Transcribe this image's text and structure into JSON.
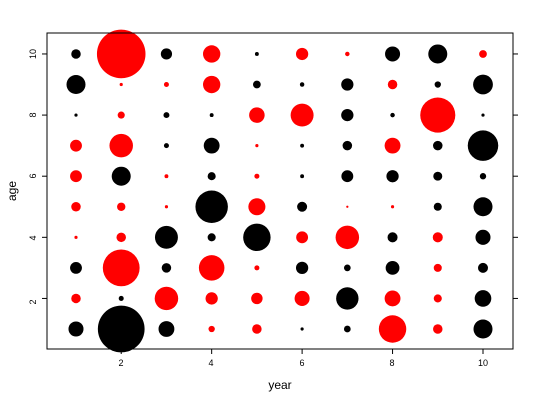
{
  "chart_data": {
    "type": "scatter",
    "title": "",
    "xlabel": "year",
    "ylabel": "age",
    "xlim": [
      0.4,
      10.6
    ],
    "ylim": [
      0.35,
      10.65
    ],
    "xticks": [
      2,
      4,
      6,
      8,
      10
    ],
    "yticks": [
      2,
      4,
      6,
      8,
      10
    ],
    "grid": false,
    "legend": "none",
    "colors": {
      "positive": "#ff0000",
      "negative": "#000000"
    },
    "size_encoding": "circle area proportional to absolute value; red = positive, black = negative",
    "points": [
      {
        "x": 1,
        "y": 1,
        "value": -0.45,
        "color": "#000000"
      },
      {
        "x": 1,
        "y": 2,
        "value": 0.18,
        "color": "#ff0000"
      },
      {
        "x": 1,
        "y": 3,
        "value": -0.28,
        "color": "#000000"
      },
      {
        "x": 1,
        "y": 4,
        "value": 0.02,
        "color": "#ff0000"
      },
      {
        "x": 1,
        "y": 5,
        "value": 0.18,
        "color": "#ff0000"
      },
      {
        "x": 1,
        "y": 6,
        "value": 0.28,
        "color": "#ff0000"
      },
      {
        "x": 1,
        "y": 7,
        "value": 0.28,
        "color": "#ff0000"
      },
      {
        "x": 1,
        "y": 8,
        "value": -0.02,
        "color": "#000000"
      },
      {
        "x": 1,
        "y": 9,
        "value": -0.72,
        "color": "#000000"
      },
      {
        "x": 1,
        "y": 10,
        "value": -0.18,
        "color": "#000000"
      },
      {
        "x": 2,
        "y": 1,
        "value": -4.35,
        "color": "#000000"
      },
      {
        "x": 2,
        "y": 2,
        "value": -0.05,
        "color": "#000000"
      },
      {
        "x": 2,
        "y": 3,
        "value": 2.7,
        "color": "#ff0000"
      },
      {
        "x": 2,
        "y": 4,
        "value": 0.18,
        "color": "#ff0000"
      },
      {
        "x": 2,
        "y": 5,
        "value": 0.14,
        "color": "#ff0000"
      },
      {
        "x": 2,
        "y": 6,
        "value": -0.72,
        "color": "#000000"
      },
      {
        "x": 2,
        "y": 7,
        "value": 1.1,
        "color": "#ff0000"
      },
      {
        "x": 2,
        "y": 8,
        "value": 0.1,
        "color": "#ff0000"
      },
      {
        "x": 2,
        "y": 9,
        "value": 0.02,
        "color": "#ff0000"
      },
      {
        "x": 2,
        "y": 10,
        "value": 4.7,
        "color": "#ff0000"
      },
      {
        "x": 3,
        "y": 1,
        "value": -0.5,
        "color": "#000000"
      },
      {
        "x": 3,
        "y": 2,
        "value": 1.1,
        "color": "#ff0000"
      },
      {
        "x": 3,
        "y": 3,
        "value": -0.18,
        "color": "#000000"
      },
      {
        "x": 3,
        "y": 4,
        "value": -1.05,
        "color": "#000000"
      },
      {
        "x": 3,
        "y": 5,
        "value": 0.02,
        "color": "#ff0000"
      },
      {
        "x": 3,
        "y": 6,
        "value": 0.03,
        "color": "#ff0000"
      },
      {
        "x": 3,
        "y": 7,
        "value": -0.05,
        "color": "#000000"
      },
      {
        "x": 3,
        "y": 8,
        "value": -0.07,
        "color": "#000000"
      },
      {
        "x": 3,
        "y": 9,
        "value": 0.05,
        "color": "#ff0000"
      },
      {
        "x": 3,
        "y": 10,
        "value": -0.25,
        "color": "#000000"
      },
      {
        "x": 4,
        "y": 1,
        "value": 0.08,
        "color": "#ff0000"
      },
      {
        "x": 4,
        "y": 2,
        "value": 0.3,
        "color": "#ff0000"
      },
      {
        "x": 4,
        "y": 3,
        "value": 1.3,
        "color": "#ff0000"
      },
      {
        "x": 4,
        "y": 4,
        "value": -0.13,
        "color": "#000000"
      },
      {
        "x": 4,
        "y": 5,
        "value": -2.1,
        "color": "#000000"
      },
      {
        "x": 4,
        "y": 6,
        "value": -0.13,
        "color": "#000000"
      },
      {
        "x": 4,
        "y": 7,
        "value": -0.5,
        "color": "#000000"
      },
      {
        "x": 4,
        "y": 8,
        "value": -0.03,
        "color": "#000000"
      },
      {
        "x": 4,
        "y": 9,
        "value": 0.6,
        "color": "#ff0000"
      },
      {
        "x": 4,
        "y": 10,
        "value": 0.6,
        "color": "#ff0000"
      },
      {
        "x": 5,
        "y": 1,
        "value": 0.18,
        "color": "#ff0000"
      },
      {
        "x": 5,
        "y": 2,
        "value": 0.26,
        "color": "#ff0000"
      },
      {
        "x": 5,
        "y": 3,
        "value": 0.05,
        "color": "#ff0000"
      },
      {
        "x": 5,
        "y": 4,
        "value": -1.5,
        "color": "#000000"
      },
      {
        "x": 5,
        "y": 5,
        "value": 0.58,
        "color": "#ff0000"
      },
      {
        "x": 5,
        "y": 6,
        "value": 0.05,
        "color": "#ff0000"
      },
      {
        "x": 5,
        "y": 7,
        "value": 0.02,
        "color": "#ff0000"
      },
      {
        "x": 5,
        "y": 8,
        "value": 0.48,
        "color": "#ff0000"
      },
      {
        "x": 5,
        "y": 9,
        "value": -0.12,
        "color": "#000000"
      },
      {
        "x": 5,
        "y": 10,
        "value": -0.03,
        "color": "#000000"
      },
      {
        "x": 6,
        "y": 1,
        "value": -0.02,
        "color": "#000000"
      },
      {
        "x": 6,
        "y": 2,
        "value": 0.45,
        "color": "#ff0000"
      },
      {
        "x": 6,
        "y": 3,
        "value": -0.3,
        "color": "#000000"
      },
      {
        "x": 6,
        "y": 4,
        "value": 0.28,
        "color": "#ff0000"
      },
      {
        "x": 6,
        "y": 5,
        "value": -0.2,
        "color": "#000000"
      },
      {
        "x": 6,
        "y": 6,
        "value": -0.03,
        "color": "#000000"
      },
      {
        "x": 6,
        "y": 7,
        "value": -0.03,
        "color": "#000000"
      },
      {
        "x": 6,
        "y": 8,
        "value": 1.05,
        "color": "#ff0000"
      },
      {
        "x": 6,
        "y": 9,
        "value": -0.04,
        "color": "#000000"
      },
      {
        "x": 6,
        "y": 10,
        "value": 0.3,
        "color": "#ff0000"
      },
      {
        "x": 7,
        "y": 1,
        "value": -0.09,
        "color": "#000000"
      },
      {
        "x": 7,
        "y": 2,
        "value": -1.0,
        "color": "#000000"
      },
      {
        "x": 7,
        "y": 3,
        "value": -0.09,
        "color": "#000000"
      },
      {
        "x": 7,
        "y": 4,
        "value": 1.1,
        "color": "#ff0000"
      },
      {
        "x": 7,
        "y": 5,
        "value": 0.01,
        "color": "#ff0000"
      },
      {
        "x": 7,
        "y": 6,
        "value": -0.28,
        "color": "#000000"
      },
      {
        "x": 7,
        "y": 7,
        "value": -0.18,
        "color": "#000000"
      },
      {
        "x": 7,
        "y": 8,
        "value": -0.3,
        "color": "#000000"
      },
      {
        "x": 7,
        "y": 9,
        "value": -0.3,
        "color": "#000000"
      },
      {
        "x": 7,
        "y": 10,
        "value": 0.04,
        "color": "#ff0000"
      },
      {
        "x": 8,
        "y": 1,
        "value": 1.5,
        "color": "#ff0000"
      },
      {
        "x": 8,
        "y": 2,
        "value": 0.5,
        "color": "#ff0000"
      },
      {
        "x": 8,
        "y": 3,
        "value": -0.38,
        "color": "#000000"
      },
      {
        "x": 8,
        "y": 4,
        "value": -0.2,
        "color": "#000000"
      },
      {
        "x": 8,
        "y": 5,
        "value": 0.02,
        "color": "#ff0000"
      },
      {
        "x": 8,
        "y": 6,
        "value": -0.3,
        "color": "#000000"
      },
      {
        "x": 8,
        "y": 7,
        "value": 0.5,
        "color": "#ff0000"
      },
      {
        "x": 8,
        "y": 8,
        "value": -0.04,
        "color": "#000000"
      },
      {
        "x": 8,
        "y": 9,
        "value": 0.18,
        "color": "#ff0000"
      },
      {
        "x": 8,
        "y": 10,
        "value": -0.45,
        "color": "#000000"
      },
      {
        "x": 9,
        "y": 1,
        "value": 0.18,
        "color": "#ff0000"
      },
      {
        "x": 9,
        "y": 2,
        "value": 0.13,
        "color": "#ff0000"
      },
      {
        "x": 9,
        "y": 3,
        "value": 0.13,
        "color": "#ff0000"
      },
      {
        "x": 9,
        "y": 4,
        "value": 0.2,
        "color": "#ff0000"
      },
      {
        "x": 9,
        "y": 5,
        "value": -0.13,
        "color": "#000000"
      },
      {
        "x": 9,
        "y": 6,
        "value": -0.16,
        "color": "#000000"
      },
      {
        "x": 9,
        "y": 7,
        "value": -0.18,
        "color": "#000000"
      },
      {
        "x": 9,
        "y": 8,
        "value": 2.45,
        "color": "#ff0000"
      },
      {
        "x": 9,
        "y": 9,
        "value": -0.08,
        "color": "#000000"
      },
      {
        "x": 9,
        "y": 10,
        "value": -0.72,
        "color": "#000000"
      },
      {
        "x": 10,
        "y": 1,
        "value": -0.72,
        "color": "#000000"
      },
      {
        "x": 10,
        "y": 2,
        "value": -0.55,
        "color": "#000000"
      },
      {
        "x": 10,
        "y": 3,
        "value": -0.2,
        "color": "#000000"
      },
      {
        "x": 10,
        "y": 4,
        "value": -0.45,
        "color": "#000000"
      },
      {
        "x": 10,
        "y": 5,
        "value": -0.72,
        "color": "#000000"
      },
      {
        "x": 10,
        "y": 6,
        "value": -0.08,
        "color": "#000000"
      },
      {
        "x": 10,
        "y": 7,
        "value": -1.85,
        "color": "#000000"
      },
      {
        "x": 10,
        "y": 8,
        "value": -0.02,
        "color": "#000000"
      },
      {
        "x": 10,
        "y": 9,
        "value": -0.78,
        "color": "#000000"
      },
      {
        "x": 10,
        "y": 10,
        "value": 0.12,
        "color": "#ff0000"
      }
    ]
  }
}
